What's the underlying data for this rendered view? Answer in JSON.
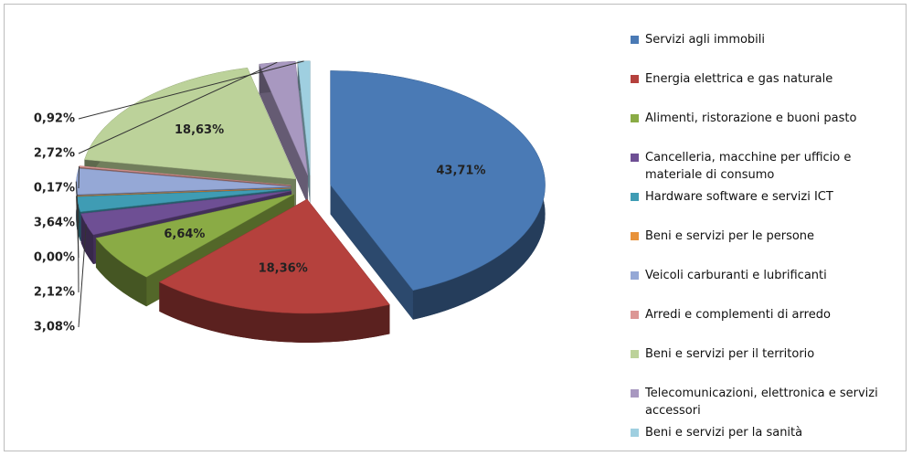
{
  "chart_data": {
    "type": "pie",
    "categories": [
      "Servizi agli immobili",
      "Energia elettrica e gas naturale",
      "Alimenti, ristorazione e buoni pasto",
      "Cancelleria, macchine per ufficio e materiale di consumo",
      "Hardware software e servizi ICT",
      "Beni e servizi per le persone",
      "Veicoli carburanti e lubrificanti",
      "Arredi e complementi di arredo",
      "Beni e servizi per il territorio",
      "Telecomunicazioni, elettronica e servizi accessori",
      "Beni e servizi per la sanità"
    ],
    "values": [
      43.71,
      18.36,
      6.64,
      3.08,
      2.12,
      0.0,
      3.64,
      0.17,
      18.63,
      2.72,
      0.92
    ],
    "value_labels": [
      "43,71%",
      "18,36%",
      "6,64%",
      "3,08%",
      "2,12%",
      "0,00%",
      "3,64%",
      "0,17%",
      "18,63%",
      "2,72%",
      "0,92%"
    ],
    "colors": [
      "#4a7ab5",
      "#b5413d",
      "#8aab45",
      "#6e4f94",
      "#3f9cb4",
      "#e8923a",
      "#95a8d6",
      "#dc9795",
      "#bcd29a",
      "#a898c0",
      "#9fcfe0"
    ],
    "legend": "right"
  }
}
